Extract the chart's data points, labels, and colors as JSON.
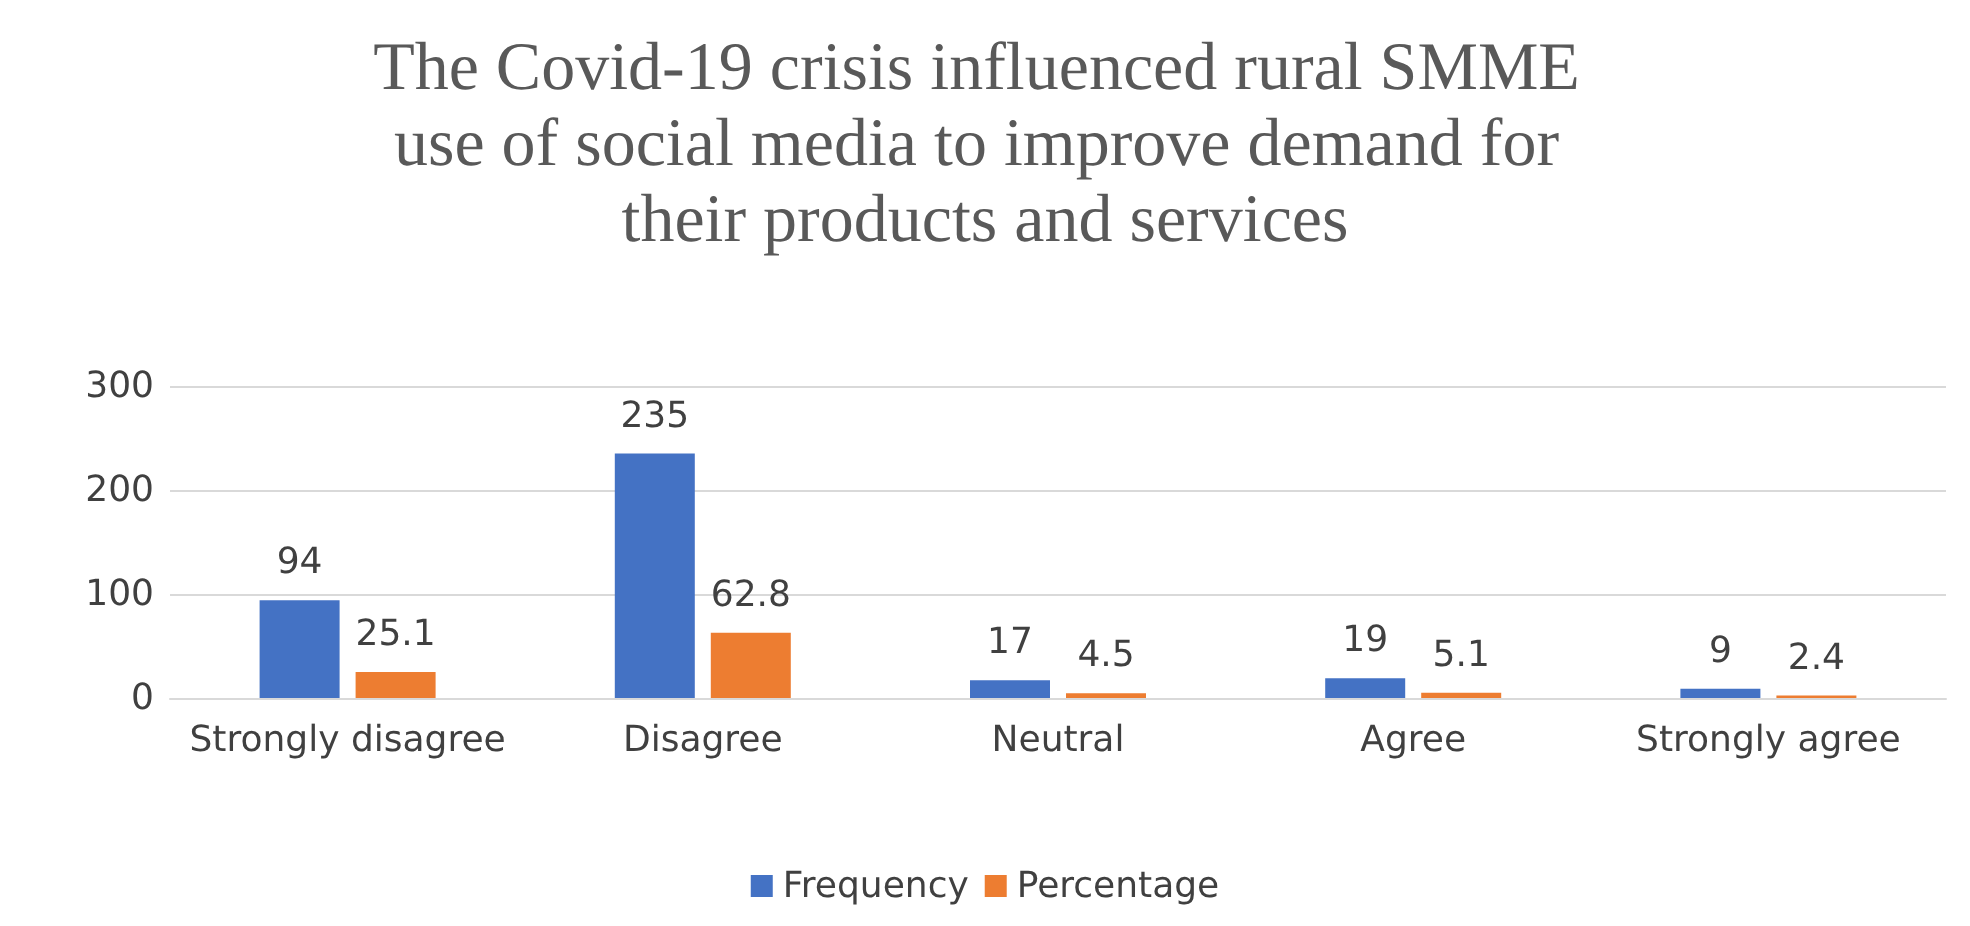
{
  "chart_data": {
    "type": "bar",
    "title": "The Covid-19 crisis influenced rural SMME use of social media to improve demand for their products and services",
    "categories": [
      "Strongly disagree",
      "Disagree",
      "Neutral",
      "Agree",
      "Strongly agree"
    ],
    "series": [
      {
        "name": "Frequency",
        "color": "#4472c4",
        "values": [
          94,
          235,
          17,
          19,
          9
        ]
      },
      {
        "name": "Percentage",
        "color": "#ed7d31",
        "values": [
          25.1,
          62.8,
          4.5,
          5.1,
          2.4
        ]
      }
    ],
    "ylim": [
      0,
      300
    ],
    "yticks": [
      0,
      100,
      200,
      300
    ],
    "grid": "y",
    "legend": "bottom",
    "data_labels": true
  }
}
